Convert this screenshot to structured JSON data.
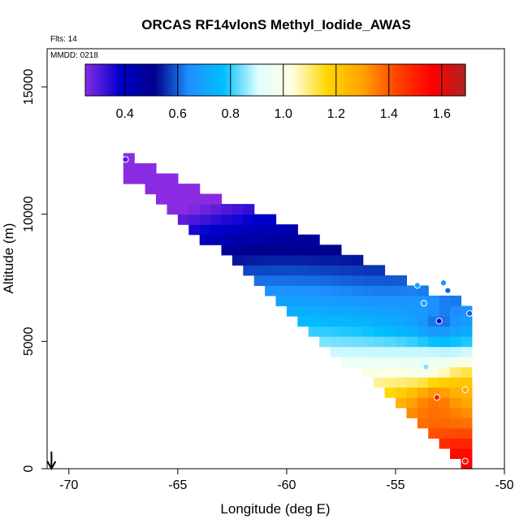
{
  "chart_data": {
    "type": "heatmap",
    "title": "ORCAS RF14vlonS Methyl_Iodide_AWAS",
    "annotations": {
      "flights": "Flts: 14",
      "date": "MMDD: 0218"
    },
    "xlabel": "Longitude (deg E)",
    "ylabel": "Altitude (m)",
    "xlim": [
      -71,
      -50
    ],
    "ylim": [
      0,
      16500
    ],
    "x_ticks": [
      -70,
      -65,
      -60,
      -55,
      -50
    ],
    "x_tick_labels": [
      "-70",
      "-65",
      "-60",
      "-55",
      "-50"
    ],
    "y_ticks": [
      0,
      5000,
      10000,
      15000
    ],
    "y_tick_labels": [
      "0",
      "5000",
      "10000",
      "15000"
    ],
    "colorbar": {
      "range": [
        0.25,
        1.69
      ],
      "ticks": [
        0.4,
        0.6,
        0.8,
        1.0,
        1.2,
        1.4,
        1.6
      ],
      "tick_labels": [
        "0.4",
        "0.6",
        "0.8",
        "1.0",
        "1.2",
        "1.4",
        "1.6"
      ],
      "colors": [
        "#8a2be2",
        "#0000cd",
        "#00008b",
        "#1e90ff",
        "#00bfff",
        "#e0ffff",
        "#ffffe0",
        "#ffd700",
        "#ffa500",
        "#ff4500",
        "#ff0000",
        "#b22222"
      ]
    },
    "marker": {
      "type": "arrow-down",
      "longitude": -70.8
    },
    "grid_cell": {
      "dlon": 0.5,
      "dalt": 400
    },
    "field_extent": {
      "lon_range": [
        -67.5,
        -51.7
      ],
      "top_altitude_m": [
        12200,
        6200
      ],
      "bottom_altitude_m": [
        11700,
        200
      ]
    },
    "sample_points": [
      {
        "lon": -67.4,
        "alt": 12150,
        "value": 0.3
      },
      {
        "lon": -54.0,
        "alt": 7200,
        "value": 0.7
      },
      {
        "lon": -53.7,
        "alt": 6500,
        "value": 0.7
      },
      {
        "lon": -52.8,
        "alt": 7300,
        "value": 0.65
      },
      {
        "lon": -52.6,
        "alt": 7000,
        "value": 0.6
      },
      {
        "lon": -53.0,
        "alt": 5800,
        "value": 0.4
      },
      {
        "lon": -51.6,
        "alt": 6100,
        "value": 0.6
      },
      {
        "lon": -53.6,
        "alt": 4000,
        "value": 0.85
      },
      {
        "lon": -53.1,
        "alt": 2800,
        "value": 1.5
      },
      {
        "lon": -51.8,
        "alt": 3100,
        "value": 1.3
      },
      {
        "lon": -51.8,
        "alt": 300,
        "value": 1.5
      }
    ]
  }
}
